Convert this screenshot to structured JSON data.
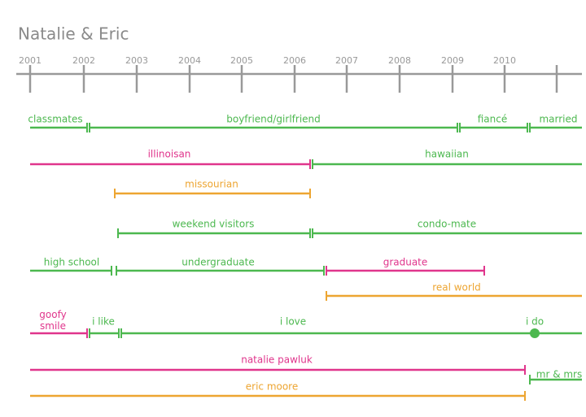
{
  "title": "Natalie & Eric",
  "years": [
    "2001",
    "2002",
    "2003",
    "2004",
    "2005",
    "2006",
    "2007",
    "2008",
    "2009",
    "2010"
  ],
  "rows": [
    [
      "classmates",
      "boyfriend/girlfriend",
      "fiancé",
      "married"
    ],
    [
      "illinoisan",
      "hawaiian"
    ],
    [
      "missourian"
    ],
    [
      "weekend visitors",
      "condo-mate"
    ],
    [
      "high school",
      "undergraduate",
      "graduate"
    ],
    [
      "real world"
    ],
    [
      "goofy smile",
      "i like",
      "i love",
      "i do"
    ],
    [
      "natalie pawluk",
      "mr & mrs"
    ],
    [
      "eric moore"
    ]
  ]
}
